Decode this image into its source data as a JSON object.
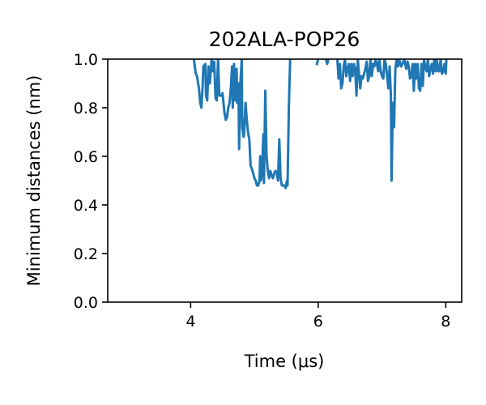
{
  "chart_data": {
    "type": "line",
    "title": "202ALA-POP26",
    "xlabel": "Time (μs)",
    "ylabel": "Minimum distances (nm)",
    "xlim": [
      2.7,
      8.25
    ],
    "ylim": [
      0.0,
      1.0
    ],
    "x_ticks": [
      4,
      6,
      8
    ],
    "x_tick_labels": [
      "4",
      "6",
      "8"
    ],
    "y_ticks": [
      0.0,
      0.2,
      0.4,
      0.6,
      0.8,
      1.0
    ],
    "y_tick_labels": [
      "0.0",
      "0.2",
      "0.4",
      "0.6",
      "0.8",
      "1.0"
    ],
    "grid": false,
    "legend": false,
    "line_color": "#1f77b4",
    "series": [
      {
        "segments": [
          [
            [
              4.05,
              1.0
            ],
            [
              4.08,
              0.94
            ],
            [
              4.1,
              0.93
            ],
            [
              4.13,
              0.88
            ],
            [
              4.15,
              0.82
            ],
            [
              4.17,
              0.8
            ],
            [
              4.19,
              0.9
            ],
            [
              4.2,
              0.97
            ],
            [
              4.23,
              0.98
            ],
            [
              4.24,
              0.85
            ],
            [
              4.26,
              0.83
            ],
            [
              4.28,
              0.97
            ],
            [
              4.3,
              0.9
            ],
            [
              4.33,
              1.0
            ],
            [
              4.35,
              0.95
            ],
            [
              4.37,
              0.99
            ],
            [
              4.39,
              0.84
            ],
            [
              4.41,
              0.83
            ],
            [
              4.43,
              1.0
            ],
            [
              4.45,
              0.85
            ],
            [
              4.48,
              0.85
            ],
            [
              4.5,
              0.86
            ],
            [
              4.53,
              0.78
            ],
            [
              4.55,
              0.75
            ],
            [
              4.57,
              0.76
            ],
            [
              4.59,
              0.8
            ],
            [
              4.61,
              0.82
            ],
            [
              4.63,
              0.88
            ],
            [
              4.65,
              0.97
            ],
            [
              4.66,
              0.8
            ],
            [
              4.68,
              0.98
            ],
            [
              4.7,
              0.83
            ],
            [
              4.72,
              0.96
            ],
            [
              4.73,
              0.82
            ],
            [
              4.75,
              0.9
            ],
            [
              4.76,
              0.63
            ],
            [
              4.78,
              0.9
            ],
            [
              4.8,
              1.0
            ],
            [
              4.81,
              0.72
            ],
            [
              4.83,
              0.68
            ],
            [
              4.84,
              0.7
            ],
            [
              4.86,
              0.82
            ],
            [
              4.88,
              0.75
            ],
            [
              4.9,
              0.7
            ],
            [
              4.92,
              0.67
            ],
            [
              4.94,
              0.56
            ],
            [
              4.96,
              0.55
            ],
            [
              4.98,
              0.53
            ],
            [
              5.0,
              0.51
            ],
            [
              5.02,
              0.5
            ],
            [
              5.04,
              0.48
            ],
            [
              5.06,
              0.48
            ],
            [
              5.08,
              0.5
            ],
            [
              5.09,
              0.6
            ],
            [
              5.1,
              0.5
            ],
            [
              5.12,
              0.53
            ],
            [
              5.14,
              0.69
            ],
            [
              5.15,
              0.49
            ],
            [
              5.17,
              0.87
            ],
            [
              5.19,
              0.6
            ],
            [
              5.21,
              0.54
            ],
            [
              5.23,
              0.51
            ],
            [
              5.25,
              0.54
            ],
            [
              5.27,
              0.52
            ],
            [
              5.29,
              0.51
            ],
            [
              5.31,
              0.53
            ],
            [
              5.33,
              0.54
            ],
            [
              5.35,
              0.53
            ],
            [
              5.37,
              0.5
            ],
            [
              5.39,
              0.67
            ],
            [
              5.41,
              0.51
            ],
            [
              5.43,
              0.48
            ],
            [
              5.45,
              0.48
            ],
            [
              5.47,
              0.48
            ],
            [
              5.49,
              0.47
            ],
            [
              5.51,
              0.5
            ],
            [
              5.52,
              0.48
            ],
            [
              5.54,
              0.8
            ],
            [
              5.56,
              1.0
            ]
          ],
          [
            [
              5.98,
              0.98
            ],
            [
              6.0,
              1.0
            ]
          ],
          [
            [
              6.12,
              1.0
            ],
            [
              6.14,
              0.98
            ],
            [
              6.16,
              1.0
            ]
          ],
          [
            [
              6.3,
              1.0
            ],
            [
              6.32,
              0.92
            ],
            [
              6.34,
              0.98
            ],
            [
              6.36,
              0.88
            ],
            [
              6.38,
              0.9
            ],
            [
              6.4,
              0.97
            ],
            [
              6.42,
              1.0
            ],
            [
              6.44,
              0.93
            ],
            [
              6.46,
              0.96
            ],
            [
              6.48,
              0.98
            ],
            [
              6.5,
              0.91
            ],
            [
              6.52,
              0.98
            ],
            [
              6.54,
              0.93
            ],
            [
              6.56,
              0.98
            ],
            [
              6.58,
              0.96
            ],
            [
              6.6,
              0.85
            ],
            [
              6.62,
              1.0
            ],
            [
              6.64,
              0.94
            ],
            [
              6.66,
              0.88
            ],
            [
              6.68,
              0.93
            ],
            [
              6.7,
              0.92
            ],
            [
              6.72,
              0.94
            ],
            [
              6.74,
              0.96
            ],
            [
              6.76,
              0.99
            ],
            [
              6.78,
              0.91
            ],
            [
              6.8,
              0.93
            ],
            [
              6.82,
              1.0
            ],
            [
              6.84,
              0.93
            ],
            [
              6.86,
              0.98
            ],
            [
              6.88,
              0.97
            ],
            [
              6.9,
              1.0
            ],
            [
              6.92,
              0.98
            ],
            [
              6.94,
              0.95
            ],
            [
              6.96,
              1.0
            ],
            [
              6.98,
              0.95
            ],
            [
              7.0,
              0.93
            ],
            [
              7.02,
              0.92
            ],
            [
              7.04,
              1.0
            ],
            [
              7.06,
              0.98
            ],
            [
              7.08,
              0.93
            ],
            [
              7.1,
              0.88
            ],
            [
              7.12,
              0.97
            ],
            [
              7.14,
              0.85
            ],
            [
              7.15,
              0.5
            ],
            [
              7.17,
              0.82
            ],
            [
              7.19,
              0.72
            ],
            [
              7.21,
              0.96
            ],
            [
              7.23,
              1.0
            ],
            [
              7.25,
              0.97
            ],
            [
              7.27,
              1.0
            ],
            [
              7.3,
              0.97
            ],
            [
              7.32,
              0.98
            ],
            [
              7.35,
              1.0
            ],
            [
              7.38,
              0.96
            ],
            [
              7.4,
              0.99
            ],
            [
              7.42,
              0.97
            ],
            [
              7.44,
              0.92
            ],
            [
              7.46,
              0.93
            ],
            [
              7.48,
              0.98
            ],
            [
              7.5,
              0.87
            ],
            [
              7.52,
              0.98
            ],
            [
              7.54,
              0.92
            ],
            [
              7.56,
              0.98
            ],
            [
              7.58,
              0.88
            ],
            [
              7.6,
              0.87
            ],
            [
              7.62,
              0.98
            ],
            [
              7.64,
              0.89
            ],
            [
              7.66,
              1.0
            ],
            [
              7.68,
              0.97
            ],
            [
              7.7,
              0.95
            ],
            [
              7.72,
              1.0
            ],
            [
              7.74,
              0.93
            ],
            [
              7.76,
              0.96
            ],
            [
              7.78,
              0.98
            ],
            [
              7.8,
              0.94
            ],
            [
              7.82,
              1.0
            ],
            [
              7.84,
              0.95
            ],
            [
              7.86,
              1.0
            ],
            [
              7.88,
              0.95
            ],
            [
              7.9,
              0.95
            ],
            [
              7.92,
              1.0
            ],
            [
              7.94,
              0.94
            ],
            [
              7.96,
              0.95
            ],
            [
              7.98,
              0.98
            ],
            [
              8.0,
              0.94
            ],
            [
              8.01,
              1.0
            ]
          ]
        ]
      }
    ]
  }
}
